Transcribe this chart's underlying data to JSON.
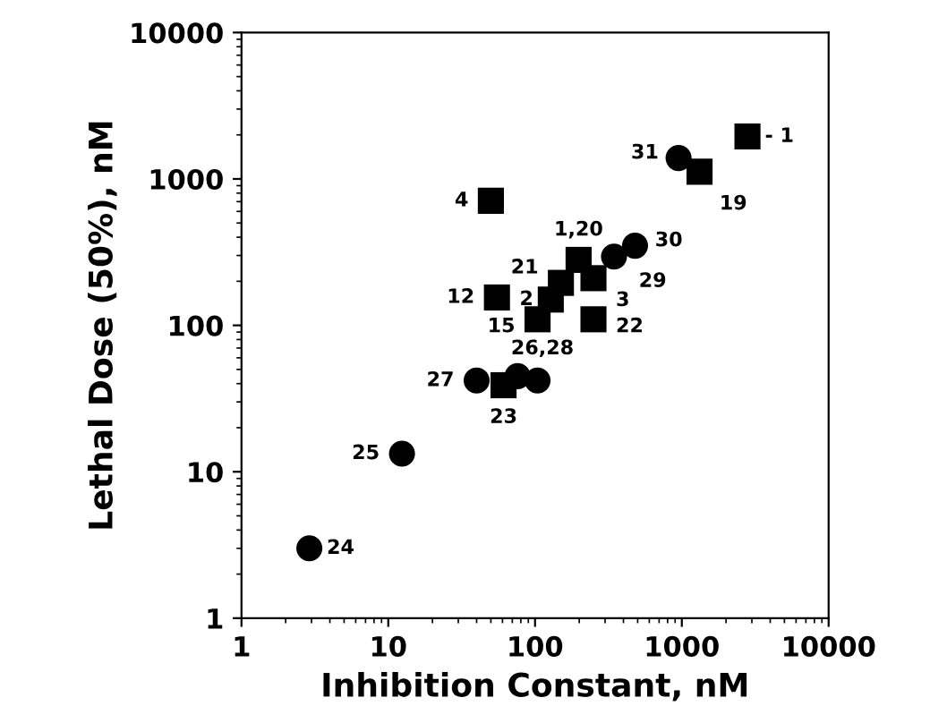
{
  "chart_data": {
    "type": "scatter",
    "xlabel": "Inhibition Constant, nM",
    "ylabel": "Lethal Dose (50%), nM",
    "log": "xy",
    "grid": false,
    "xlim": [
      1,
      10000
    ],
    "ylim": [
      1,
      10000
    ],
    "xticks": [
      1,
      10,
      100,
      1000,
      10000
    ],
    "yticks": [
      1,
      10,
      100,
      1000,
      10000
    ],
    "series": [
      {
        "color": "#000000",
        "marker": "circle",
        "x": [
          2.9,
          12.4,
          40,
          76,
          104,
          345,
          480,
          950
        ],
        "values": [
          3.0,
          13.3,
          42,
          45,
          42,
          295,
          350,
          1390
        ]
      },
      {
        "color": "#000000",
        "marker": "square",
        "x": [
          61,
          104,
          55,
          128,
          150,
          198,
          50,
          250,
          250,
          1320,
          2800
        ],
        "values": [
          39,
          110,
          155,
          150,
          195,
          280,
          710,
          210,
          110,
          1120,
          1950
        ]
      }
    ],
    "annotations": [
      {
        "text": "24",
        "x": 2.9,
        "y": 3.0
      },
      {
        "text": "25",
        "x": 12.4,
        "y": 13.3
      },
      {
        "text": "27",
        "x": 40,
        "y": 42
      },
      {
        "text": "23",
        "x": 61,
        "y": 39
      },
      {
        "text": "26,28",
        "x": 76,
        "y": 45
      },
      {
        "text": "15",
        "x": 104,
        "y": 110
      },
      {
        "text": "12",
        "x": 55,
        "y": 155
      },
      {
        "text": "2",
        "x": 128,
        "y": 150
      },
      {
        "text": "21",
        "x": 150,
        "y": 195
      },
      {
        "text": "1,20",
        "x": 198,
        "y": 280
      },
      {
        "text": "4",
        "x": 50,
        "y": 710
      },
      {
        "text": "3",
        "x": 250,
        "y": 210
      },
      {
        "text": "22",
        "x": 250,
        "y": 110
      },
      {
        "text": "29",
        "x": 345,
        "y": 295
      },
      {
        "text": "30",
        "x": 480,
        "y": 350
      },
      {
        "text": "31",
        "x": 950,
        "y": 1390
      },
      {
        "text": "19",
        "x": 1320,
        "y": 1120
      },
      {
        "text": "- 1",
        "x": 2800,
        "y": 1950
      }
    ]
  }
}
